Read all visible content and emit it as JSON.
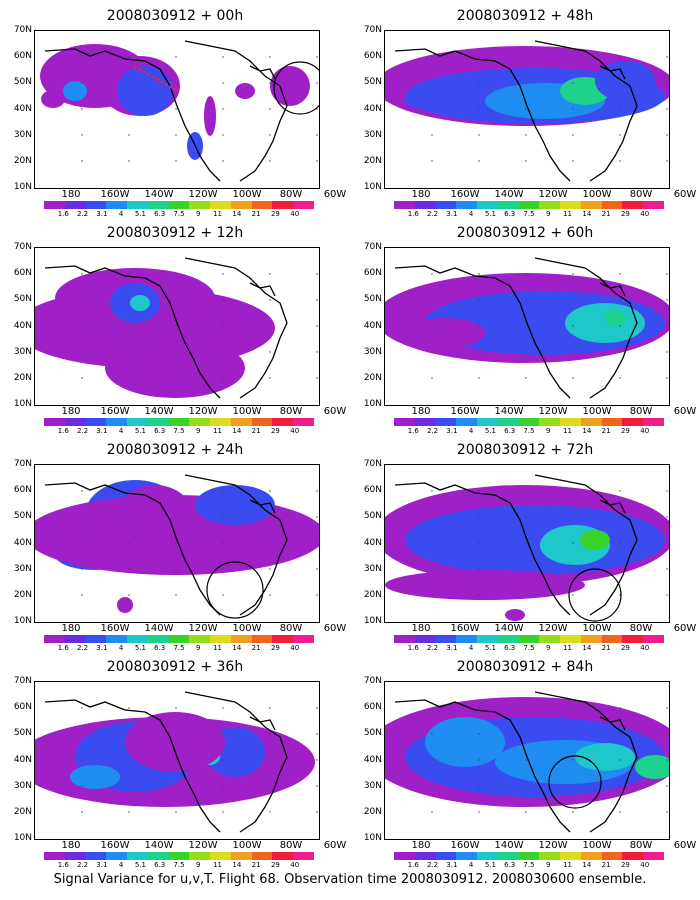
{
  "caption": "Signal Variance for u,v,T. Flight 68. Observation time 2008030912. 2008030600 ensemble.",
  "lat_labels": [
    "70N",
    "60N",
    "50N",
    "40N",
    "30N",
    "20N",
    "10N"
  ],
  "lon_labels": [
    "180",
    "160W",
    "140W",
    "120W",
    "100W",
    "80W",
    "60W"
  ],
  "colorbar_labels": [
    "1.6",
    "2.2",
    "3.1",
    "4",
    "5.1",
    "6.3",
    "7.5",
    "9",
    "11",
    "14",
    "21",
    "29",
    "40"
  ],
  "colorbar_colors": [
    "#a020c8",
    "#6a2ce0",
    "#3a4cf0",
    "#1e8cf0",
    "#1ec8c8",
    "#1ed28c",
    "#38d228",
    "#96dc1e",
    "#dcdc1e",
    "#f0a01e",
    "#f0641e",
    "#f01e3c",
    "#f01e8c"
  ],
  "panels": [
    {
      "title": "2008030912 + 00h"
    },
    {
      "title": "2008030912 + 48h"
    },
    {
      "title": "2008030912 + 12h"
    },
    {
      "title": "2008030912 + 60h"
    },
    {
      "title": "2008030912 + 24h"
    },
    {
      "title": "2008030912 + 72h"
    },
    {
      "title": "2008030912 + 36h"
    },
    {
      "title": "2008030912 + 84h"
    }
  ]
}
